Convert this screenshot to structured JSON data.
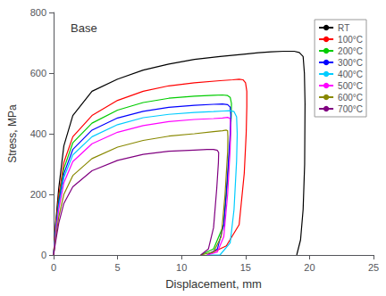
{
  "chart_data": {
    "type": "line",
    "title": "Base",
    "xlabel": "Displacement, mm",
    "ylabel": "Stress, MPa",
    "xlim": [
      0,
      25
    ],
    "ylim": [
      0,
      800
    ],
    "xticks": [
      0,
      5,
      10,
      15,
      20,
      25
    ],
    "yticks": [
      0,
      200,
      400,
      600,
      800
    ],
    "grid": false,
    "legend": "upper right",
    "series": [
      {
        "name": "RT",
        "color": "#000000",
        "x": [
          0,
          0.15,
          0.4,
          0.8,
          1.5,
          3,
          5,
          7,
          9,
          11,
          13,
          15,
          16,
          17,
          18,
          18.8,
          19.2,
          19.5,
          19.6,
          19.65,
          19.62,
          19.5,
          19.3,
          19.0
        ],
        "values": [
          0,
          100,
          220,
          360,
          460,
          540,
          580,
          610,
          630,
          645,
          655,
          663,
          667,
          670,
          672,
          672,
          668,
          655,
          600,
          500,
          300,
          150,
          50,
          0
        ]
      },
      {
        "name": "100°C",
        "color": "#ff0000",
        "x": [
          0,
          0.15,
          0.4,
          0.8,
          1.5,
          3,
          5,
          7,
          9,
          11,
          13,
          14,
          14.5,
          14.8,
          15.0,
          15.1,
          15.1,
          15.05,
          14.9,
          14.5,
          13.5,
          12.0
        ],
        "values": [
          0,
          90,
          195,
          305,
          390,
          460,
          510,
          540,
          558,
          568,
          575,
          578,
          580,
          578,
          568,
          540,
          490,
          400,
          270,
          100,
          30,
          0
        ]
      },
      {
        "name": "200°C",
        "color": "#00cc00",
        "x": [
          0,
          0.15,
          0.4,
          0.8,
          1.5,
          3,
          5,
          7,
          9,
          11,
          12.5,
          13.2,
          13.6,
          13.8,
          13.9,
          13.88,
          13.8,
          13.6,
          13.3,
          12.5,
          11.5
        ],
        "values": [
          0,
          80,
          180,
          285,
          370,
          435,
          478,
          503,
          517,
          524,
          527,
          528,
          526,
          520,
          500,
          460,
          380,
          250,
          100,
          20,
          0
        ]
      },
      {
        "name": "300°C",
        "color": "#0000ff",
        "x": [
          0,
          0.15,
          0.4,
          0.8,
          1.5,
          3,
          5,
          7,
          9,
          11,
          12.5,
          13.2,
          13.6,
          13.8,
          13.85,
          13.8,
          13.6,
          13.3,
          12.8,
          12.0
        ],
        "values": [
          0,
          75,
          170,
          268,
          348,
          412,
          452,
          474,
          487,
          494,
          497,
          498,
          496,
          488,
          462,
          400,
          270,
          100,
          20,
          0
        ]
      },
      {
        "name": "400°C",
        "color": "#00ccff",
        "x": [
          0,
          0.15,
          0.4,
          0.8,
          1.5,
          3,
          5,
          7,
          9,
          11,
          12.5,
          13.3,
          13.8,
          14.1,
          14.3,
          14.35,
          14.3,
          14.1,
          13.8,
          13.0,
          12.0
        ],
        "values": [
          0,
          70,
          160,
          255,
          330,
          390,
          430,
          453,
          464,
          470,
          473,
          475,
          476,
          473,
          456,
          400,
          310,
          150,
          40,
          0,
          0
        ]
      },
      {
        "name": "500°C",
        "color": "#ff00ff",
        "x": [
          0,
          0.15,
          0.4,
          0.8,
          1.5,
          3,
          5,
          7,
          9,
          11,
          12.5,
          13.2,
          13.6,
          13.8,
          13.85,
          13.8,
          13.6,
          13.3,
          12.8,
          12.0
        ],
        "values": [
          0,
          65,
          150,
          238,
          308,
          367,
          405,
          427,
          440,
          447,
          450,
          452,
          454,
          450,
          420,
          350,
          200,
          60,
          10,
          0
        ]
      },
      {
        "name": "600°C",
        "color": "#888800",
        "x": [
          0,
          0.15,
          0.4,
          0.8,
          1.5,
          3,
          5,
          7,
          9,
          11,
          12.5,
          13.2,
          13.5,
          13.6,
          13.62,
          13.6,
          13.4,
          13.1,
          12.5,
          11.5
        ],
        "values": [
          0,
          52,
          125,
          200,
          262,
          318,
          356,
          378,
          392,
          400,
          407,
          410,
          412,
          410,
          390,
          340,
          200,
          60,
          10,
          0
        ]
      },
      {
        "name": "700°C",
        "color": "#800080",
        "x": [
          0,
          0.15,
          0.4,
          0.8,
          1.5,
          3,
          5,
          7,
          9,
          11,
          12.0,
          12.5,
          12.8,
          12.9,
          12.88,
          12.75,
          12.5,
          12.1,
          11.5
        ],
        "values": [
          0,
          42,
          105,
          170,
          225,
          278,
          312,
          332,
          342,
          346,
          348,
          348,
          345,
          338,
          305,
          220,
          90,
          20,
          0
        ]
      }
    ]
  }
}
